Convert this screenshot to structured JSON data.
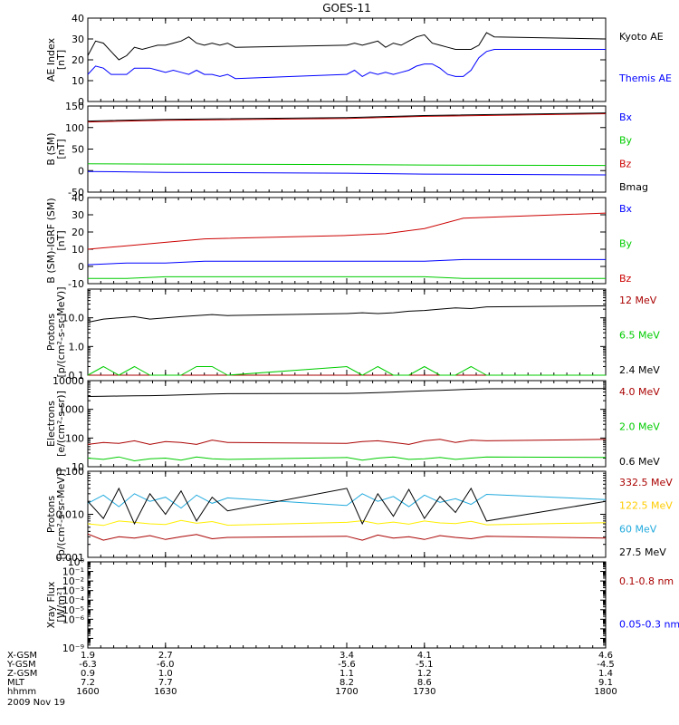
{
  "title": "GOES-11",
  "colors": {
    "black": "#000000",
    "blue": "#0000ff",
    "green": "#00cc00",
    "red": "#cc0000",
    "darkred": "#aa0000",
    "yellow": "#ffee00",
    "cyan": "#22aadd"
  },
  "footer": {
    "rows": [
      {
        "label": "X-GSM",
        "values": [
          "1.9",
          "2.7",
          "3.4",
          "4.1",
          "4.6"
        ]
      },
      {
        "label": "Y-GSM",
        "values": [
          "-6.3",
          "-6.0",
          "-5.6",
          "-5.1",
          "-4.5"
        ]
      },
      {
        "label": "Z-GSM",
        "values": [
          "0.9",
          "1.0",
          "1.1",
          "1.2",
          "1.4"
        ]
      },
      {
        "label": "MLT",
        "values": [
          "7.2",
          "7.7",
          "8.2",
          "8.6",
          "9.1"
        ]
      },
      {
        "label": "hhmm",
        "values": [
          "1600",
          "1630",
          "1700",
          "1730",
          "1800"
        ]
      }
    ],
    "date": "2009 Nov 19"
  },
  "chart_data": [
    {
      "type": "line",
      "ylabel": "AE Index\n[nT]",
      "ylim": [
        0,
        40
      ],
      "scale": "linear",
      "yticks": [
        0,
        10,
        20,
        30,
        40
      ],
      "series": [
        {
          "name": "Kyoto AE",
          "color": "#000000",
          "x": [
            1600,
            1603,
            1606,
            1609,
            1612,
            1615,
            1618,
            1621,
            1624,
            1627,
            1630,
            1633,
            1636,
            1639,
            1642,
            1645,
            1648,
            1651,
            1654,
            1657,
            1700,
            1703,
            1706,
            1709,
            1712,
            1715,
            1718,
            1721,
            1724,
            1727,
            1730,
            1733,
            1736,
            1739,
            1742,
            1745,
            1748,
            1751,
            1754,
            1757,
            1800
          ],
          "values": [
            22,
            29,
            28,
            24,
            20,
            22,
            26,
            25,
            26,
            27,
            27,
            28,
            29,
            31,
            28,
            27,
            28,
            27,
            28,
            26,
            27,
            28,
            27,
            28,
            29,
            26,
            28,
            27,
            29,
            31,
            32,
            28,
            27,
            26,
            25,
            25,
            25,
            27,
            33,
            31,
            30
          ]
        },
        {
          "name": "Themis AE",
          "color": "#0000ff",
          "x": [
            1600,
            1603,
            1606,
            1609,
            1612,
            1615,
            1618,
            1621,
            1624,
            1627,
            1630,
            1633,
            1636,
            1639,
            1642,
            1645,
            1648,
            1651,
            1654,
            1657,
            1700,
            1703,
            1706,
            1709,
            1712,
            1715,
            1718,
            1721,
            1724,
            1727,
            1730,
            1733,
            1736,
            1739,
            1742,
            1745,
            1748,
            1751,
            1754,
            1757,
            1800
          ],
          "values": [
            13,
            17,
            16,
            13,
            13,
            13,
            16,
            16,
            16,
            15,
            14,
            15,
            14,
            13,
            15,
            13,
            13,
            12,
            13,
            11,
            13,
            15,
            12,
            14,
            13,
            14,
            13,
            14,
            15,
            17,
            18,
            18,
            16,
            13,
            12,
            12,
            15,
            21,
            24,
            25,
            25
          ]
        }
      ]
    },
    {
      "type": "line",
      "ylabel": "B (SM)\n[nT]",
      "ylim": [
        -50,
        150
      ],
      "scale": "linear",
      "yticks": [
        -50,
        0,
        50,
        100,
        150
      ],
      "series": [
        {
          "name": "Bx",
          "color": "#0000ff",
          "x": [
            1600,
            1630,
            1700,
            1730,
            1800
          ],
          "values": [
            -2,
            -4,
            -6,
            -8,
            -10
          ]
        },
        {
          "name": "By",
          "color": "#00cc00",
          "x": [
            1600,
            1630,
            1700,
            1730,
            1800
          ],
          "values": [
            16,
            15,
            14,
            13,
            12
          ]
        },
        {
          "name": "Bz",
          "color": "#cc0000",
          "x": [
            1600,
            1630,
            1700,
            1730,
            1800
          ],
          "values": [
            113,
            117,
            121,
            126,
            132
          ]
        },
        {
          "name": "Bmag",
          "color": "#000000",
          "x": [
            1600,
            1630,
            1700,
            1730,
            1800
          ],
          "values": [
            115,
            119,
            123,
            128,
            134
          ]
        }
      ]
    },
    {
      "type": "line",
      "ylabel": "B (SM)-IGRF (SM)\n[nT]",
      "ylim": [
        -10,
        40
      ],
      "scale": "linear",
      "yticks": [
        -10,
        0,
        10,
        20,
        30,
        40
      ],
      "series": [
        {
          "name": "Bx",
          "color": "#0000ff",
          "x": [
            1600,
            1615,
            1630,
            1645,
            1700,
            1715,
            1730,
            1745,
            1800
          ],
          "values": [
            1,
            2,
            2,
            3,
            3,
            3,
            3,
            4,
            4
          ]
        },
        {
          "name": "By",
          "color": "#00cc00",
          "x": [
            1600,
            1615,
            1630,
            1645,
            1700,
            1715,
            1730,
            1745,
            1800
          ],
          "values": [
            -7,
            -7,
            -6,
            -6,
            -6,
            -6,
            -6,
            -7,
            -7
          ]
        },
        {
          "name": "Bz",
          "color": "#cc0000",
          "x": [
            1600,
            1615,
            1630,
            1645,
            1700,
            1715,
            1730,
            1745,
            1800
          ],
          "values": [
            10,
            12,
            14,
            16,
            18,
            19,
            22,
            28,
            31
          ]
        }
      ]
    },
    {
      "type": "line",
      "ylabel": "Protons\n[p/(cm²-s-sr-MeV)]",
      "ylim": [
        0.1,
        100
      ],
      "scale": "log",
      "yticks": [
        0.1,
        1.0,
        10.0
      ],
      "yticklabels": [
        "0.1",
        "1.0",
        "10.0"
      ],
      "series": [
        {
          "name": "12 MeV",
          "color": "#aa0000",
          "x": [
            1600,
            1606,
            1612,
            1618,
            1624,
            1630,
            1636,
            1642,
            1648,
            1654,
            1700,
            1706,
            1712,
            1718,
            1724,
            1730,
            1736,
            1742,
            1748,
            1754,
            1800
          ],
          "values": [
            0.1,
            0.1,
            0.1,
            0.1,
            0.1,
            0.1,
            0.1,
            0.1,
            0.1,
            0.1,
            0.1,
            0.1,
            0.1,
            0.1,
            0.1,
            0.1,
            0.1,
            0.1,
            0.1,
            0.1,
            0.1
          ]
        },
        {
          "name": "6.5 MeV",
          "color": "#00cc00",
          "x": [
            1600,
            1606,
            1612,
            1618,
            1624,
            1630,
            1636,
            1642,
            1648,
            1654,
            1700,
            1706,
            1712,
            1718,
            1724,
            1730,
            1736,
            1742,
            1748,
            1754,
            1800
          ],
          "values": [
            0.1,
            0.2,
            0.1,
            0.2,
            0.1,
            0.1,
            0.1,
            0.2,
            0.2,
            0.1,
            0.2,
            0.1,
            0.2,
            0.1,
            0.1,
            0.2,
            0.1,
            0.1,
            0.2,
            0.1,
            0.1
          ]
        },
        {
          "name": "2.4 MeV",
          "color": "#000000",
          "x": [
            1600,
            1606,
            1612,
            1618,
            1624,
            1630,
            1636,
            1642,
            1648,
            1654,
            1700,
            1706,
            1712,
            1718,
            1724,
            1730,
            1736,
            1742,
            1748,
            1754,
            1800
          ],
          "values": [
            7,
            9,
            10,
            11,
            9,
            10,
            11,
            12,
            13,
            12,
            14,
            15,
            14,
            15,
            17,
            18,
            20,
            22,
            21,
            24,
            26
          ]
        }
      ]
    },
    {
      "type": "line",
      "ylabel": "Electrons\n[e/(cm²-s-sr)]",
      "ylim": [
        10,
        10000
      ],
      "scale": "log",
      "yticks": [
        10,
        100,
        1000,
        10000
      ],
      "yticklabels": [
        "10",
        "100",
        "1000",
        "10000"
      ],
      "series": [
        {
          "name": "4.0 MeV",
          "color": "#aa0000",
          "x": [
            1600,
            1606,
            1612,
            1618,
            1624,
            1630,
            1636,
            1642,
            1648,
            1654,
            1700,
            1706,
            1712,
            1718,
            1724,
            1730,
            1736,
            1742,
            1748,
            1754,
            1800
          ],
          "values": [
            60,
            70,
            65,
            80,
            60,
            75,
            70,
            60,
            85,
            70,
            65,
            75,
            80,
            70,
            60,
            80,
            90,
            70,
            85,
            80,
            90
          ]
        },
        {
          "name": "2.0 MeV",
          "color": "#00cc00",
          "x": [
            1600,
            1606,
            1612,
            1618,
            1624,
            1630,
            1636,
            1642,
            1648,
            1654,
            1700,
            1706,
            1712,
            1718,
            1724,
            1730,
            1736,
            1742,
            1748,
            1754,
            1800
          ],
          "values": [
            20,
            18,
            22,
            16,
            19,
            20,
            17,
            22,
            19,
            18,
            21,
            17,
            20,
            22,
            18,
            19,
            21,
            18,
            20,
            22,
            21
          ]
        },
        {
          "name": "0.6 MeV",
          "color": "#000000",
          "x": [
            1600,
            1606,
            1612,
            1618,
            1624,
            1630,
            1636,
            1642,
            1648,
            1654,
            1700,
            1706,
            1712,
            1718,
            1724,
            1730,
            1736,
            1742,
            1748,
            1754,
            1800
          ],
          "values": [
            2800,
            2850,
            2900,
            2950,
            3000,
            3050,
            3200,
            3300,
            3400,
            3500,
            3600,
            3700,
            3800,
            4000,
            4200,
            4400,
            4600,
            4800,
            5000,
            5200,
            5300
          ]
        }
      ]
    },
    {
      "type": "line",
      "ylabel": "Protons\n[p/(cm²-s-sr-MeV)]",
      "ylim": [
        0.001,
        0.1
      ],
      "scale": "log",
      "yticks": [
        0.001,
        0.01,
        0.1
      ],
      "yticklabels": [
        "0.001",
        "0.010",
        "0.100"
      ],
      "series": [
        {
          "name": "332.5 MeV",
          "color": "#aa0000",
          "x": [
            1600,
            1606,
            1612,
            1618,
            1624,
            1630,
            1636,
            1642,
            1648,
            1654,
            1700,
            1706,
            1712,
            1718,
            1724,
            1730,
            1736,
            1742,
            1748,
            1754,
            1800
          ],
          "values": [
            0.0035,
            0.0025,
            0.003,
            0.0028,
            0.0032,
            0.0026,
            0.003,
            0.0034,
            0.0027,
            0.0029,
            0.0031,
            0.0025,
            0.0033,
            0.0028,
            0.003,
            0.0026,
            0.0032,
            0.0029,
            0.0027,
            0.0031,
            0.0028
          ]
        },
        {
          "name": "122.5 MeV",
          "color": "#ffee00",
          "x": [
            1600,
            1606,
            1612,
            1618,
            1624,
            1630,
            1636,
            1642,
            1648,
            1654,
            1700,
            1706,
            1712,
            1718,
            1724,
            1730,
            1736,
            1742,
            1748,
            1754,
            1800
          ],
          "values": [
            0.006,
            0.0055,
            0.007,
            0.0065,
            0.006,
            0.0058,
            0.0072,
            0.0062,
            0.0068,
            0.0056,
            0.0065,
            0.0071,
            0.006,
            0.0066,
            0.0059,
            0.007,
            0.0063,
            0.0061,
            0.0069,
            0.0057,
            0.0064
          ]
        },
        {
          "name": "60 MeV",
          "color": "#22aadd",
          "x": [
            1600,
            1606,
            1612,
            1618,
            1624,
            1630,
            1636,
            1642,
            1648,
            1654,
            1700,
            1706,
            1712,
            1718,
            1724,
            1730,
            1736,
            1742,
            1748,
            1754,
            1800
          ],
          "values": [
            0.018,
            0.028,
            0.015,
            0.03,
            0.02,
            0.025,
            0.014,
            0.028,
            0.018,
            0.024,
            0.016,
            0.03,
            0.02,
            0.026,
            0.015,
            0.028,
            0.019,
            0.023,
            0.017,
            0.029,
            0.022
          ]
        },
        {
          "name": "27.5 MeV",
          "color": "#000000",
          "x": [
            1600,
            1606,
            1612,
            1618,
            1624,
            1630,
            1636,
            1642,
            1648,
            1654,
            1700,
            1706,
            1712,
            1718,
            1724,
            1730,
            1736,
            1742,
            1748,
            1754,
            1800
          ],
          "values": [
            0.02,
            0.008,
            0.04,
            0.006,
            0.03,
            0.01,
            0.035,
            0.007,
            0.025,
            0.012,
            0.04,
            0.006,
            0.03,
            0.009,
            0.038,
            0.008,
            0.026,
            0.011,
            0.04,
            0.007,
            0.02
          ]
        }
      ]
    },
    {
      "type": "line",
      "ylabel": "Xray Flux\n[W/m²]",
      "ylim": [
        1e-09,
        1
      ],
      "scale": "log",
      "yticks": [
        1e-09,
        1e-08,
        1e-07,
        1e-06,
        1e-05,
        0.0001,
        0.001,
        0.01,
        0.1,
        1
      ],
      "yticklabels": [
        "10⁻⁹",
        "",
        "",
        "10⁻⁶",
        "10⁻⁵",
        "10⁻⁴",
        "10⁻³",
        "10⁻²",
        "10⁻¹",
        "10⁰"
      ],
      "series": [
        {
          "name": "0.1-0.8 nm",
          "color": "#aa0000",
          "x": [],
          "values": []
        },
        {
          "name": "0.05-0.3 nm",
          "color": "#0000ff",
          "x": [],
          "values": []
        }
      ]
    }
  ]
}
